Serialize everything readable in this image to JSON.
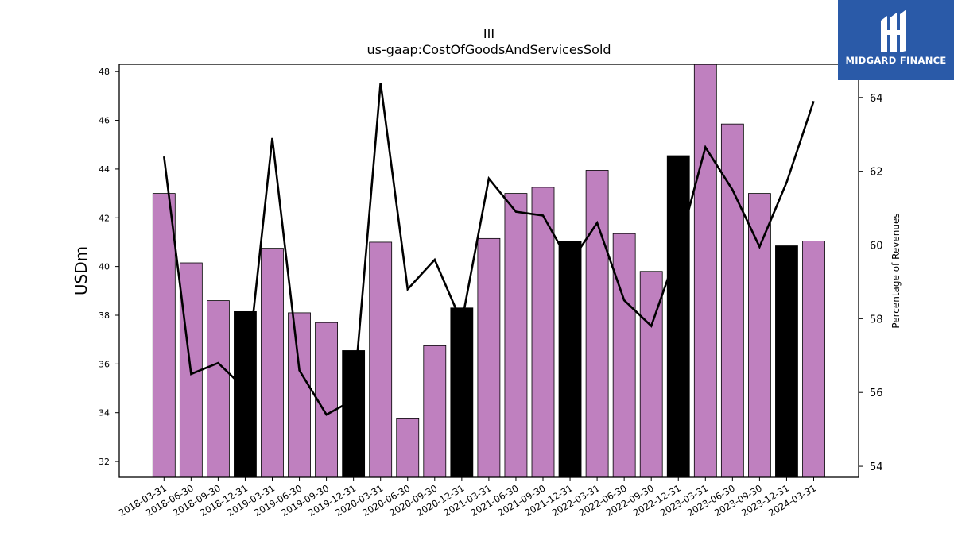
{
  "chart_data": {
    "type": "bar",
    "title": "III",
    "subtitle": "us-gaap:CostOfGoodsAndServicesSold",
    "ylabel": "USDm",
    "y2label": "Percentage of Revenues",
    "ylim": [
      31.35,
      48.3
    ],
    "y2lim": [
      53.7,
      64.9
    ],
    "yticks": [
      32,
      34,
      36,
      38,
      40,
      42,
      44,
      46,
      48
    ],
    "y2ticks": [
      54,
      56,
      58,
      60,
      62,
      64
    ],
    "categories": [
      "2018-03-31",
      "2018-06-30",
      "2018-09-30",
      "2018-12-31",
      "2019-03-31",
      "2019-06-30",
      "2019-09-30",
      "2019-12-31",
      "2020-03-31",
      "2020-06-30",
      "2020-09-30",
      "2020-12-31",
      "2021-03-31",
      "2021-06-30",
      "2021-09-30",
      "2021-12-31",
      "2022-03-31",
      "2022-06-30",
      "2022-09-30",
      "2022-12-31",
      "2023-03-31",
      "2023-06-30",
      "2023-09-30",
      "2023-12-31",
      "2024-03-31"
    ],
    "series": [
      {
        "kind": "bar",
        "axis": "left",
        "values": [
          43.0,
          40.15,
          38.6,
          38.15,
          40.75,
          38.1,
          37.7,
          36.55,
          41.0,
          33.75,
          36.75,
          38.3,
          41.15,
          43.0,
          43.25,
          41.05,
          43.95,
          41.35,
          39.8,
          44.55,
          48.35,
          45.85,
          43.0,
          40.85,
          41.05
        ],
        "highlight": [
          false,
          false,
          false,
          true,
          false,
          false,
          false,
          true,
          false,
          false,
          false,
          true,
          false,
          false,
          false,
          true,
          false,
          false,
          false,
          true,
          false,
          false,
          false,
          true,
          false
        ]
      },
      {
        "kind": "line",
        "axis": "right",
        "values": [
          62.4,
          56.5,
          56.8,
          56.1,
          62.9,
          56.6,
          55.4,
          55.8,
          64.4,
          58.8,
          59.6,
          57.9,
          61.8,
          60.9,
          60.8,
          59.5,
          60.6,
          58.5,
          57.8,
          59.9,
          62.65,
          61.5,
          59.95,
          61.7,
          63.9
        ]
      }
    ],
    "colors": {
      "bar": "#bf80bf",
      "highlight": "#000000",
      "line": "#000000"
    },
    "grid": false
  },
  "logo": {
    "text": "MIDGARD FINANCE",
    "background": "#2a5aa8"
  }
}
